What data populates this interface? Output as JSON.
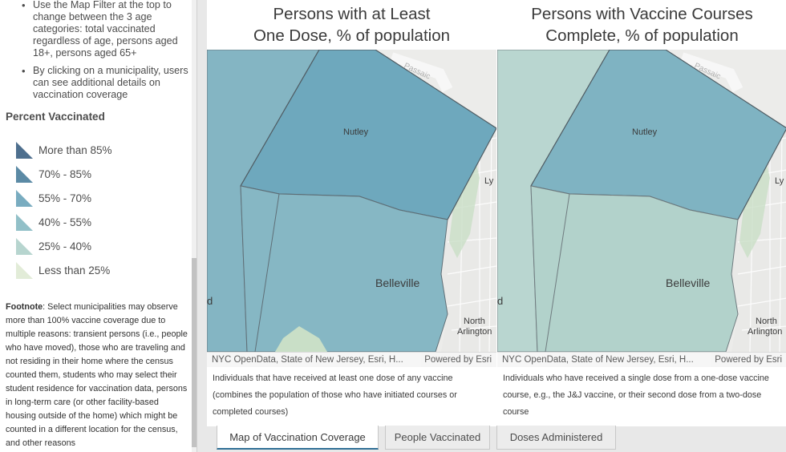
{
  "sidebar": {
    "bullets": [
      "Use the Map Filter at the top to change between the 3 age categories: total vaccinated regardless of age, persons aged 18+, persons aged 65+",
      "By clicking on a municipality, users can see additional details on vaccination coverage"
    ],
    "legend_title": "Percent Vaccinated",
    "legend": [
      {
        "label": "More than 85%",
        "color": "#4e6f8e"
      },
      {
        "label": "70% - 85%",
        "color": "#5b8aa5"
      },
      {
        "label": "55% - 70%",
        "color": "#79acc0"
      },
      {
        "label": "40% - 55%",
        "color": "#92c0c8"
      },
      {
        "label": "25% - 40%",
        "color": "#b7d5cf"
      },
      {
        "label": "Less than 25%",
        "color": "#e2ecd8"
      }
    ],
    "footnote_label": "Footnote",
    "footnote_text": ": Select municipalities may observe more than 100% vaccine coverage due to multiple reasons: transient persons (i.e., people who have moved), those who are traveling and not residing in their home where the census counted them, students who may select their student residence for vaccination data, persons in long-term care (or other facility-based housing outside of the home) which might be counted in a different location for the census, and other reasons"
  },
  "maps": [
    {
      "title_line1": "Persons with at Least",
      "title_line2": "One Dose, % of population",
      "attribution": "NYC OpenData, State of New Jersey, Esri, H...",
      "powered_by": "Powered by Esri",
      "caption": "Individuals that have received at least one dose of any vaccine (combines the population of those who have initiated courses or completed courses)",
      "labels": {
        "nutley": "Nutley",
        "belleville": "Belleville",
        "north": "North",
        "arlington": "Arlington",
        "ly": "Ly",
        "d": "d",
        "passaic": "Passaic"
      },
      "fill_north": "#6ea8bd",
      "fill_south": "#86b7c4",
      "fill_west": "#7fb3c2"
    },
    {
      "title_line1": "Persons with Vaccine Courses",
      "title_line2": "Complete, % of population",
      "attribution": "NYC OpenData, State of New Jersey, Esri, H...",
      "powered_by": "Powered by Esri",
      "caption": "Individuals who have received a single dose from a one-dose vaccine course, e.g., the J&J vaccine, or their second dose from a two-dose course",
      "labels": {
        "nutley": "Nutley",
        "belleville": "Belleville",
        "north": "North",
        "arlington": "Arlington",
        "ly": "Ly",
        "d": "d",
        "passaic": "Passaic"
      },
      "fill_north": "#7fb3c2",
      "fill_south": "#b2d2cb",
      "fill_west": "#b7d5cf"
    }
  ],
  "tabs": [
    {
      "label": "Map of Vaccination Coverage",
      "selected": true
    },
    {
      "label": "People Vaccinated",
      "selected": false
    },
    {
      "label": "Doses Administered",
      "selected": false
    }
  ]
}
